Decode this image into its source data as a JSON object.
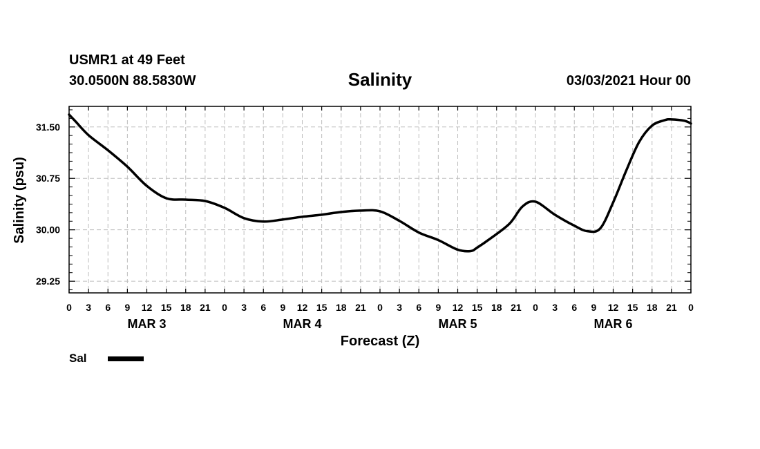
{
  "header": {
    "station": "USMR1 at 49 Feet",
    "coordinates": "30.0500N 88.5830W",
    "title": "Salinity",
    "datetime": "03/03/2021 Hour 00"
  },
  "legend": {
    "label": "Sal",
    "color": "#000000"
  },
  "chart_data": {
    "type": "line",
    "title": "Salinity",
    "xlabel": "Forecast (Z)",
    "ylabel": "Salinity (psu)",
    "xlim": [
      0,
      96
    ],
    "ylim": [
      29.08,
      31.8
    ],
    "yticks": [
      29.25,
      30.0,
      30.75,
      31.5
    ],
    "ytick_labels": [
      "29.25",
      "30.00",
      "30.75",
      "31.50"
    ],
    "xtick_labels": [
      "0",
      "3",
      "6",
      "9",
      "12",
      "15",
      "18",
      "21",
      "0",
      "3",
      "6",
      "9",
      "12",
      "15",
      "18",
      "21",
      "0",
      "3",
      "6",
      "9",
      "12",
      "15",
      "18",
      "21",
      "0",
      "3",
      "6",
      "9",
      "12",
      "15",
      "18",
      "21",
      "0"
    ],
    "day_labels": [
      {
        "label": "MAR 3",
        "x": 12
      },
      {
        "label": "MAR 4",
        "x": 36
      },
      {
        "label": "MAR 5",
        "x": 60
      },
      {
        "label": "MAR 6",
        "x": 84
      }
    ],
    "grid": true,
    "series": [
      {
        "name": "Sal",
        "color": "#000000",
        "x": [
          0,
          1,
          3,
          6,
          9,
          12,
          15,
          18,
          21,
          24,
          27,
          30,
          33,
          36,
          39,
          42,
          45,
          48,
          51,
          54,
          57,
          60,
          62,
          63,
          65,
          68,
          70,
          72,
          75,
          78,
          80,
          82,
          84,
          86,
          88,
          90,
          92,
          93,
          95,
          96
        ],
        "y": [
          31.68,
          31.58,
          31.38,
          31.16,
          30.92,
          30.64,
          30.46,
          30.44,
          30.42,
          30.32,
          30.17,
          30.12,
          30.15,
          30.19,
          30.22,
          30.26,
          30.28,
          30.27,
          30.13,
          29.96,
          29.85,
          29.71,
          29.69,
          29.74,
          29.87,
          30.09,
          30.34,
          30.41,
          30.22,
          30.06,
          29.98,
          30.02,
          30.4,
          30.86,
          31.28,
          31.52,
          31.6,
          31.61,
          31.59,
          31.55
        ]
      }
    ]
  }
}
